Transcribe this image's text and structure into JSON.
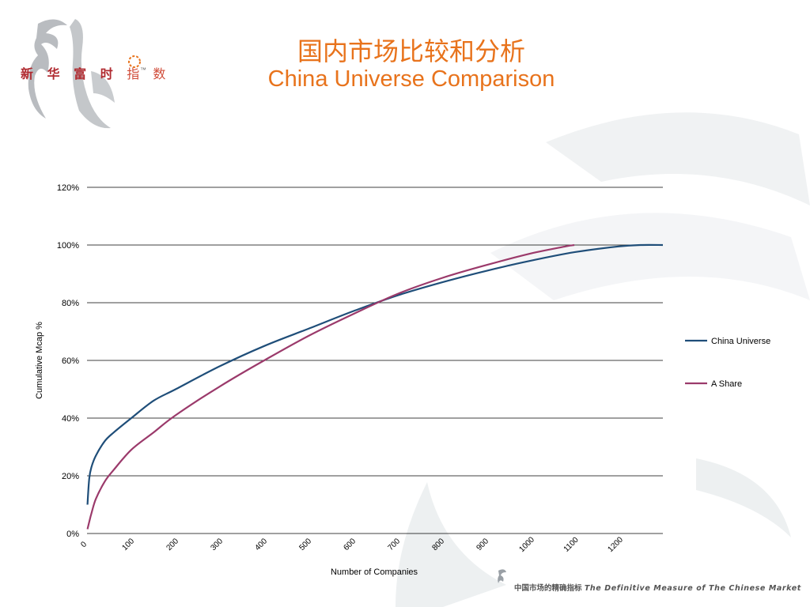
{
  "slide": {
    "title_cn": "国内市场比较和分析",
    "title_en": "China Universe Comparison",
    "logo": {
      "text_part1": "新 华 富 时",
      "text_part2": "指 数",
      "tm": "™"
    },
    "footer": {
      "cn": "中国市场的精确指标",
      "en": "The Definitive Measure of The Chinese Market"
    },
    "colors": {
      "title": "#e8731c",
      "logo_red": "#b02a30"
    }
  },
  "chart_data": {
    "type": "line",
    "title": "",
    "xlabel": "Number of Companies",
    "ylabel": "Cumulative Mcap %",
    "xlim": [
      0,
      1300
    ],
    "ylim": [
      0,
      120
    ],
    "y_ticks": [
      "0%",
      "20%",
      "40%",
      "60%",
      "80%",
      "100%",
      "120%"
    ],
    "x_ticks": [
      "0",
      "100",
      "200",
      "300",
      "400",
      "500",
      "600",
      "700",
      "800",
      "900",
      "1000",
      "1100",
      "1200"
    ],
    "grid": "horizontal",
    "legend_position": "right",
    "series": [
      {
        "name": "China Universe",
        "color": "#1f4e79",
        "x": [
          1,
          5,
          10,
          20,
          40,
          60,
          100,
          150,
          200,
          300,
          400,
          500,
          600,
          700,
          800,
          900,
          1000,
          1100,
          1200,
          1250,
          1300
        ],
        "y": [
          10,
          19,
          23,
          27,
          32,
          35,
          40,
          46,
          50,
          58,
          65,
          71,
          77,
          82.5,
          87,
          91,
          94.5,
          97.5,
          99.5,
          100,
          100
        ]
      },
      {
        "name": "A Share",
        "color": "#9b3a6b",
        "x": [
          1,
          5,
          10,
          20,
          40,
          60,
          100,
          150,
          200,
          300,
          400,
          500,
          600,
          700,
          800,
          900,
          1000,
          1080,
          1100
        ],
        "y": [
          1.5,
          4,
          7,
          12,
          18,
          22,
          29,
          35,
          41,
          51,
          60,
          68.5,
          76,
          83,
          88.5,
          93,
          97,
          99.5,
          100
        ]
      }
    ]
  }
}
